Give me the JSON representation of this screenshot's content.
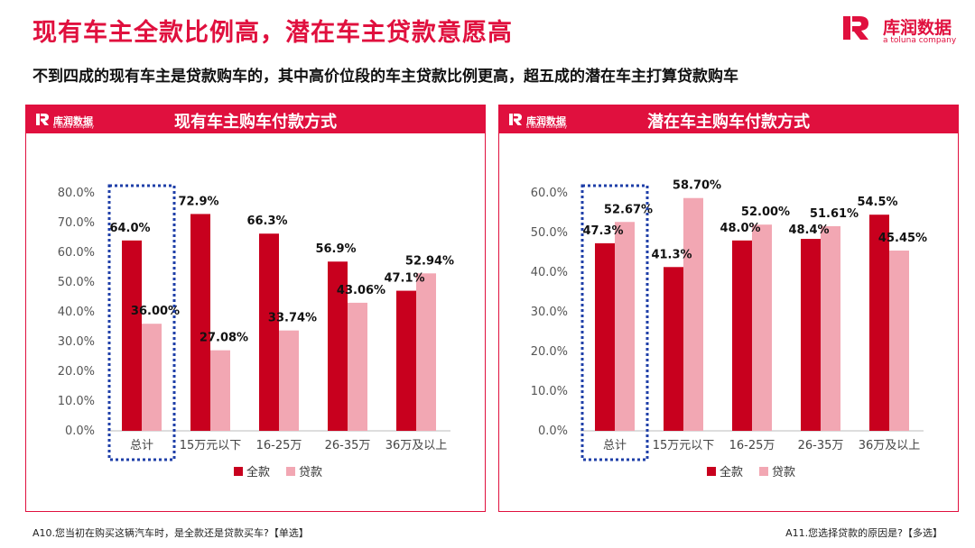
{
  "header": {
    "title": "现有车主全款比例高，潜在车主贷款意愿高",
    "subtitle": "不到四成的现有车主是贷款购车的，其中高价位段的车主贷款比例更高，超五成的潜在车主打算贷款购车"
  },
  "brand": {
    "name": "库润数据",
    "tagline": "a toluna company",
    "color": "#e0103e"
  },
  "colors": {
    "full": "#c8001e",
    "loan": "#f2a7b3",
    "accent": "#e0103e",
    "highlight": "#1f3fa8"
  },
  "footer": {
    "left": "A10.您当初在购买这辆汽车时，是全款还是贷款买车?【单选】",
    "right": "A11.您选择贷款的原因是?【多选】"
  },
  "chart_data": [
    {
      "type": "bar",
      "title": "现有车主购车付款方式",
      "categories": [
        "总计",
        "15万元以下",
        "16-25万",
        "26-35万",
        "36万及以上"
      ],
      "series": [
        {
          "name": "全款",
          "values": [
            64.0,
            72.9,
            66.3,
            56.9,
            47.1
          ],
          "labels": [
            "64.0%",
            "72.9%",
            "66.3%",
            "56.9%",
            "47.1%"
          ]
        },
        {
          "name": "贷款",
          "values": [
            36.0,
            27.08,
            33.74,
            43.06,
            52.94
          ],
          "labels": [
            "36.00%",
            "27.08%",
            "33.74%",
            "43.06%",
            "52.94%"
          ]
        }
      ],
      "ylim": [
        0,
        80
      ],
      "yticks": [
        "0.0%",
        "10.0%",
        "20.0%",
        "30.0%",
        "40.0%",
        "50.0%",
        "60.0%",
        "70.0%",
        "80.0%"
      ],
      "legend": "bottom",
      "highlight_category": "总计"
    },
    {
      "type": "bar",
      "title": "潜在车主购车付款方式",
      "categories": [
        "总计",
        "15万元以下",
        "16-25万",
        "26-35万",
        "36万及以上"
      ],
      "series": [
        {
          "name": "全款",
          "values": [
            47.3,
            41.3,
            48.0,
            48.4,
            54.5
          ],
          "labels": [
            "47.3%",
            "41.3%",
            "48.0%",
            "48.4%",
            "54.5%"
          ]
        },
        {
          "name": "贷款",
          "values": [
            52.67,
            58.7,
            52.0,
            51.61,
            45.45
          ],
          "labels": [
            "52.67%",
            "58.70%",
            "52.00%",
            "51.61%",
            "45.45%"
          ]
        }
      ],
      "ylim": [
        0,
        60
      ],
      "yticks": [
        "0.0%",
        "10.0%",
        "20.0%",
        "30.0%",
        "40.0%",
        "50.0%",
        "60.0%"
      ],
      "legend": "bottom",
      "highlight_category": "总计"
    }
  ]
}
